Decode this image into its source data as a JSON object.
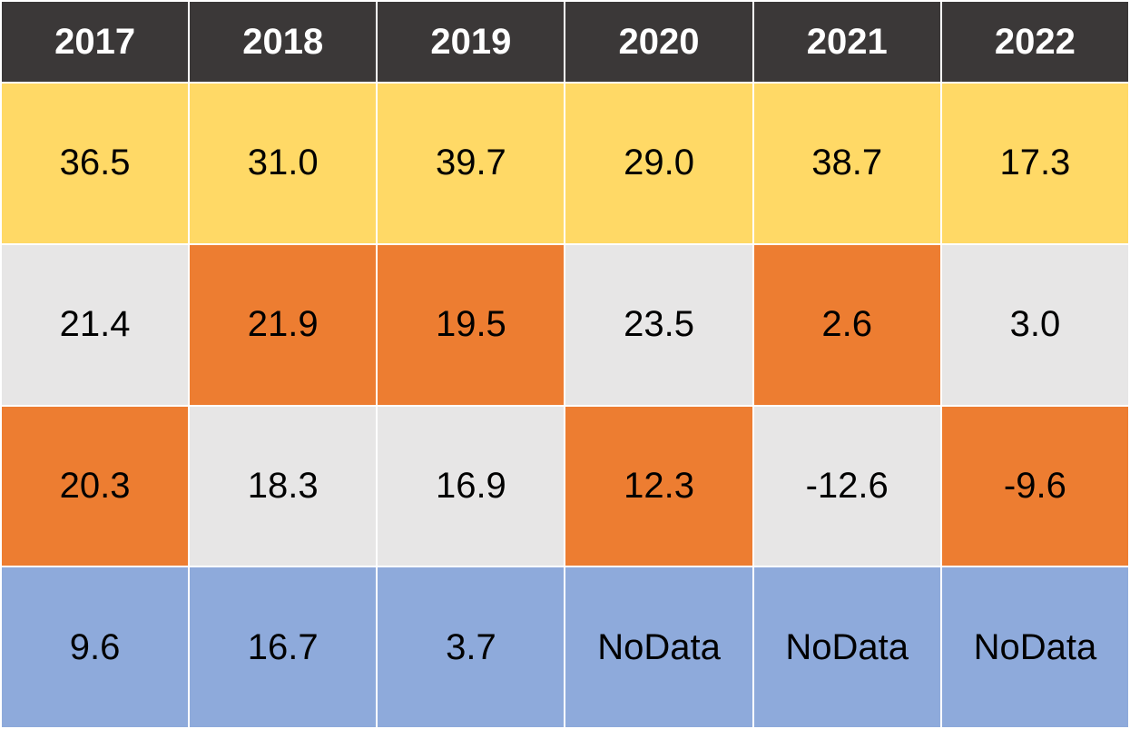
{
  "chart_data": {
    "type": "table",
    "columns": [
      "2017",
      "2018",
      "2019",
      "2020",
      "2021",
      "2022"
    ],
    "rows": [
      {
        "cells": [
          "36.5",
          "31.0",
          "39.7",
          "29.0",
          "38.7",
          "17.3"
        ],
        "colors": [
          "#ffd966",
          "#ffd966",
          "#ffd966",
          "#ffd966",
          "#ffd966",
          "#ffd966"
        ]
      },
      {
        "cells": [
          "21.4",
          "21.9",
          "19.5",
          "23.5",
          "2.6",
          "3.0"
        ],
        "colors": [
          "#e7e6e6",
          "#ed7d31",
          "#ed7d31",
          "#e7e6e6",
          "#ed7d31",
          "#e7e6e6"
        ]
      },
      {
        "cells": [
          "20.3",
          "18.3",
          "16.9",
          "12.3",
          "-12.6",
          "-9.6"
        ],
        "colors": [
          "#ed7d31",
          "#e7e6e6",
          "#e7e6e6",
          "#ed7d31",
          "#e7e6e6",
          "#ed7d31"
        ]
      },
      {
        "cells": [
          "9.6",
          "16.7",
          "3.7",
          "NoData",
          "NoData",
          "NoData"
        ],
        "colors": [
          "#8eaadb",
          "#8eaadb",
          "#8eaadb",
          "#8eaadb",
          "#8eaadb",
          "#8eaadb"
        ]
      }
    ],
    "header_color": "#3b3838"
  }
}
